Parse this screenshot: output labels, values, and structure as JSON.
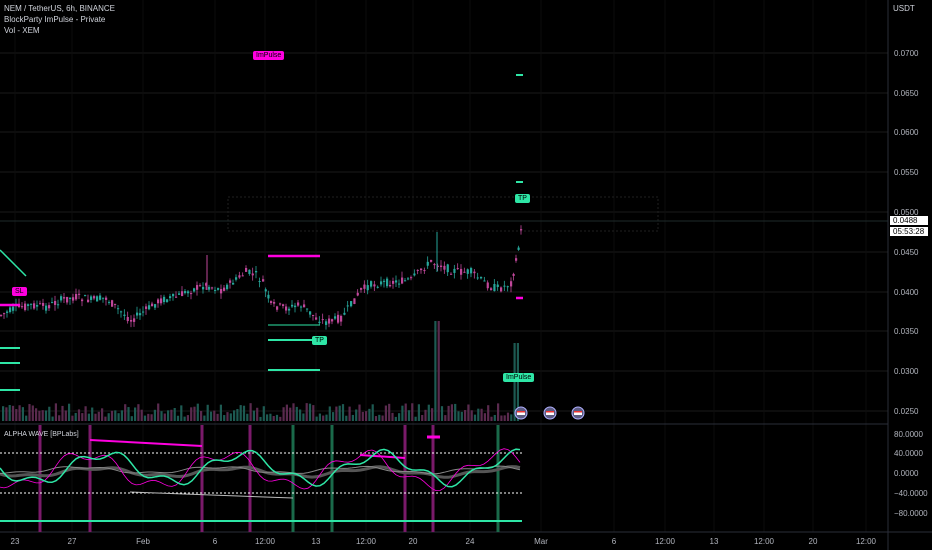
{
  "header": {
    "symbol_line": "NEM / TetherUS, 6h, BINANCE",
    "indicator_line": "BlockParty ImPulse - Private",
    "volume_line": "Vol - XEM",
    "unit": "USDT"
  },
  "price_axis": {
    "ticks": [
      "0.0700",
      "0.0650",
      "0.0600",
      "0.0550",
      "0.0500",
      "0.0450",
      "0.0400",
      "0.0350",
      "0.0300",
      "0.0250"
    ],
    "current_price": "0.0488",
    "countdown": "05:53:28"
  },
  "oscillator": {
    "title": "ALPHA WAVE [BPLabs]",
    "ticks": [
      "80.0000",
      "40.0000",
      "0.0000",
      "−40.0000",
      "−80.0000"
    ]
  },
  "time_axis": {
    "labels": [
      "23",
      "27",
      "Feb",
      "6",
      "12:00",
      "13",
      "12:00",
      "20",
      "24",
      "Mar",
      "6",
      "12:00",
      "13",
      "12:00",
      "20",
      "12:00"
    ]
  },
  "chart_tags": {
    "impulse_top": "ImPulse",
    "impulse_bottom": "ImPulse",
    "tp_upper": "TP",
    "tp_lower": "TP",
    "sl_left": "SL"
  },
  "colors": {
    "background": "#000000",
    "up_candle": "#26a69a",
    "green_accent": "#2ee6a6",
    "magenta": "#ff00e0",
    "down_candle": "#c0479a",
    "price_tag_bg": "#ffffff",
    "grid": "#1a1a1a"
  },
  "icons": [
    "calendar-event-icon",
    "calendar-event-icon",
    "calendar-event-icon"
  ]
}
